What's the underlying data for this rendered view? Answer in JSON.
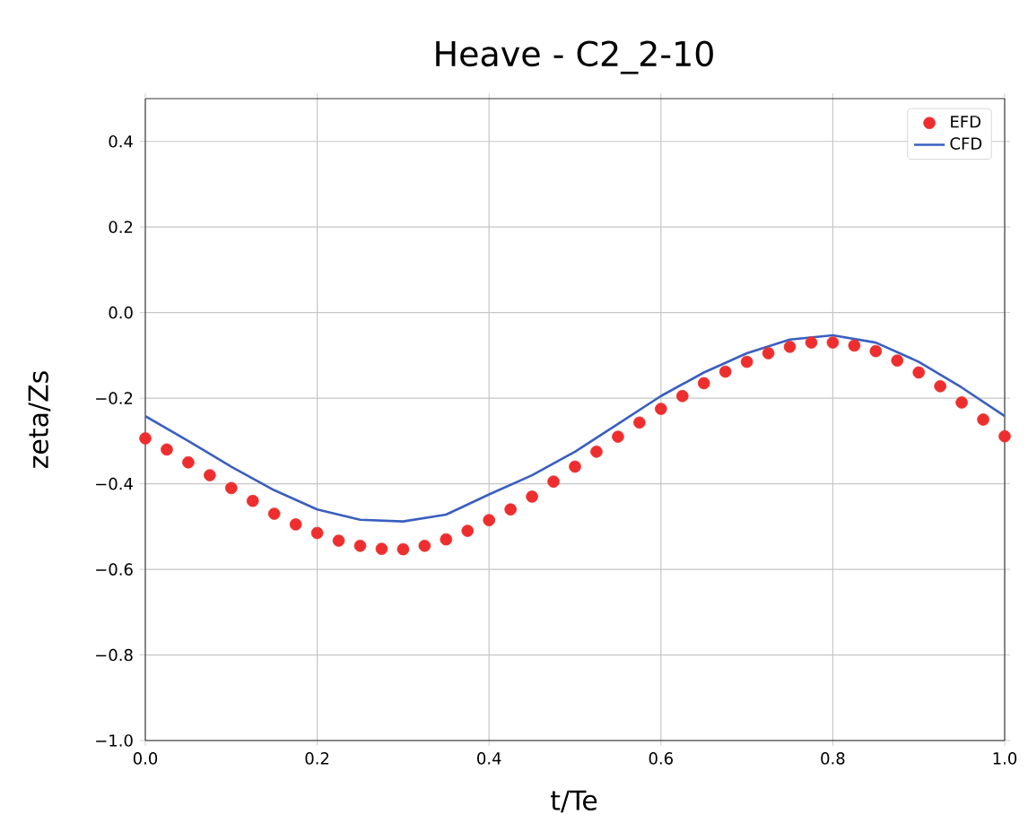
{
  "chart_data": {
    "type": "line",
    "title": "Heave - C2_2-10",
    "xlabel": "t/Te",
    "ylabel": "zeta/Zs",
    "xlim": [
      0,
      1
    ],
    "ylim": [
      -1.0,
      0.5
    ],
    "xticks": [
      {
        "value": 0,
        "label": "0.0"
      },
      0.2,
      0.4,
      0.6,
      0.8,
      {
        "value": 1,
        "label": "1.0"
      }
    ],
    "yticks": [
      {
        "value": -1,
        "label": "−1.0"
      },
      {
        "value": -0.8,
        "label": "−0.8"
      },
      {
        "value": -0.6,
        "label": "−0.6"
      },
      {
        "value": -0.4,
        "label": "−0.4"
      },
      {
        "value": -0.2,
        "label": "−0.2"
      },
      {
        "value": 0,
        "label": "0.0"
      },
      0.2,
      0.4
    ],
    "grid": true,
    "legend": "top right",
    "series": [
      {
        "name": "EFD",
        "type": "scatter",
        "marker": "circle",
        "color": "#ee2e2e",
        "x": [
          0,
          0.025,
          0.05,
          0.075,
          0.1,
          0.125,
          0.15,
          0.175,
          0.2,
          0.225,
          0.25,
          0.275,
          0.3,
          0.325,
          0.35,
          0.375,
          0.4,
          0.425,
          0.45,
          0.475,
          0.5,
          0.525,
          0.55,
          0.575,
          0.6,
          0.625,
          0.65,
          0.675,
          0.7,
          0.725,
          0.75,
          0.775,
          0.8,
          0.825,
          0.85,
          0.875,
          0.9,
          0.925,
          0.95,
          0.975,
          1.0
        ],
        "values": [
          -0.294,
          -0.32,
          -0.35,
          -0.38,
          -0.41,
          -0.44,
          -0.47,
          -0.495,
          -0.515,
          -0.533,
          -0.545,
          -0.552,
          -0.553,
          -0.545,
          -0.53,
          -0.51,
          -0.485,
          -0.46,
          -0.43,
          -0.395,
          -0.36,
          -0.325,
          -0.29,
          -0.257,
          -0.225,
          -0.195,
          -0.165,
          -0.138,
          -0.115,
          -0.095,
          -0.08,
          -0.07,
          -0.07,
          -0.077,
          -0.09,
          -0.112,
          -0.14,
          -0.172,
          -0.21,
          -0.25,
          -0.289
        ]
      },
      {
        "name": "CFD",
        "color": "#3a5fc0",
        "x": [
          0,
          0.05,
          0.1,
          0.15,
          0.2,
          0.25,
          0.3,
          0.35,
          0.4,
          0.45,
          0.5,
          0.55,
          0.6,
          0.65,
          0.7,
          0.75,
          0.8,
          0.85,
          0.9,
          0.95,
          1.0
        ],
        "values": [
          -0.242,
          -0.3,
          -0.36,
          -0.415,
          -0.46,
          -0.484,
          -0.488,
          -0.472,
          -0.425,
          -0.38,
          -0.325,
          -0.26,
          -0.195,
          -0.14,
          -0.095,
          -0.063,
          -0.053,
          -0.07,
          -0.115,
          -0.175,
          -0.242
        ]
      }
    ]
  }
}
